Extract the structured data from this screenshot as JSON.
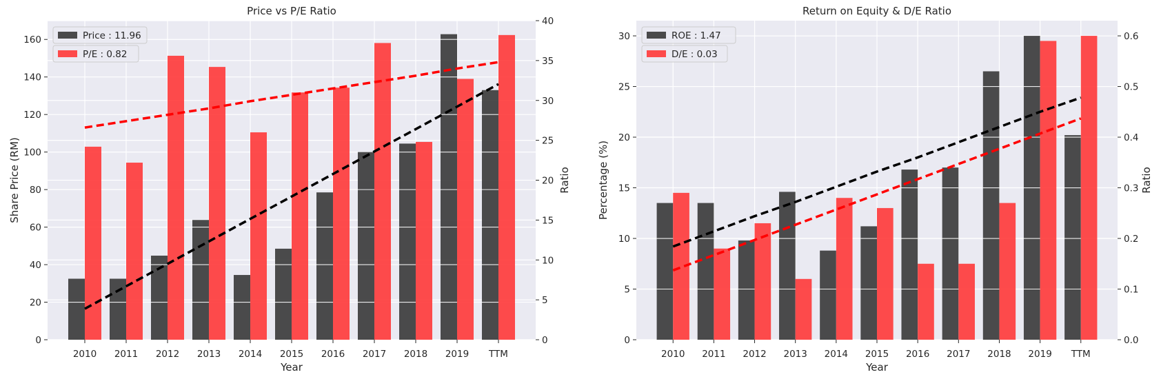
{
  "colors": {
    "panel_bg": "#eaeaf2",
    "grid": "#ffffff",
    "dark_bar": "#333333",
    "red_bar": "#ff3333",
    "dark_line": "#000000",
    "red_line": "#ff0000"
  },
  "chart_data": [
    {
      "type": "bar",
      "title": "Price vs P/E Ratio",
      "xlabel": "Year",
      "ylabel": "Share Price (RM)",
      "y2label": "Ratio",
      "categories": [
        "2010",
        "2011",
        "2012",
        "2013",
        "2014",
        "2015",
        "2016",
        "2017",
        "2018",
        "2019",
        "TTM"
      ],
      "ylim": [
        0,
        170
      ],
      "y2lim": [
        0,
        40
      ],
      "yticks": [
        0,
        20,
        40,
        60,
        80,
        100,
        120,
        140,
        160
      ],
      "y2ticks": [
        0,
        5,
        10,
        15,
        20,
        25,
        30,
        35,
        40
      ],
      "grid": true,
      "legend_position": "upper-left",
      "series": [
        {
          "name": "Price : 11.96",
          "axis": "left",
          "color": "#333333",
          "values": [
            32.5,
            32.5,
            44.8,
            63.8,
            34.5,
            48.5,
            78.5,
            100.0,
            104.5,
            162.8,
            133.0
          ],
          "trend": [
            16.5,
            28.5,
            40.4,
            52.4,
            64.4,
            76.3,
            88.3,
            100.3,
            112.2,
            124.2,
            136.2
          ]
        },
        {
          "name": "P/E : 0.82",
          "axis": "right",
          "color": "#ff3333",
          "values": [
            24.2,
            22.2,
            35.6,
            34.2,
            26.0,
            31.0,
            31.6,
            37.2,
            24.8,
            32.7,
            38.2
          ],
          "trend": [
            26.6,
            27.4,
            28.2,
            29.0,
            29.9,
            30.7,
            31.5,
            32.3,
            33.1,
            34.0,
            34.8
          ]
        }
      ]
    },
    {
      "type": "bar",
      "title": "Return on Equity & D/E Ratio",
      "xlabel": "Year",
      "ylabel": "Percentage (%)",
      "y2label": "Ratio",
      "categories": [
        "2010",
        "2011",
        "2012",
        "2013",
        "2014",
        "2015",
        "2016",
        "2017",
        "2018",
        "2019",
        "TTM"
      ],
      "ylim": [
        0,
        31.5
      ],
      "y2lim": [
        0,
        0.63
      ],
      "yticks": [
        0,
        5,
        10,
        15,
        20,
        25,
        30
      ],
      "y2ticks": [
        0.0,
        0.1,
        0.2,
        0.3,
        0.4,
        0.5,
        0.6
      ],
      "y2tick_labels": [
        "0.0",
        "0.1",
        "0.2",
        "0.3",
        "0.4",
        "0.5",
        "0.6"
      ],
      "grid": true,
      "legend_position": "upper-left",
      "series": [
        {
          "name": "ROE : 1.47",
          "axis": "left",
          "color": "#333333",
          "values": [
            13.5,
            13.5,
            9.8,
            14.6,
            8.8,
            11.2,
            16.8,
            17.0,
            26.5,
            30.0,
            20.2
          ],
          "trend": [
            9.2,
            10.7,
            12.2,
            13.6,
            15.1,
            16.6,
            18.0,
            19.5,
            21.0,
            22.5,
            23.9
          ]
        },
        {
          "name": "D/E : 0.03",
          "axis": "right",
          "color": "#ff3333",
          "values": [
            0.29,
            0.18,
            0.23,
            0.12,
            0.28,
            0.26,
            0.15,
            0.15,
            0.27,
            0.59,
            0.6
          ],
          "trend": [
            0.137,
            0.167,
            0.197,
            0.227,
            0.257,
            0.287,
            0.317,
            0.347,
            0.377,
            0.407,
            0.437
          ],
          "trend_from_index": 0
        }
      ]
    }
  ]
}
